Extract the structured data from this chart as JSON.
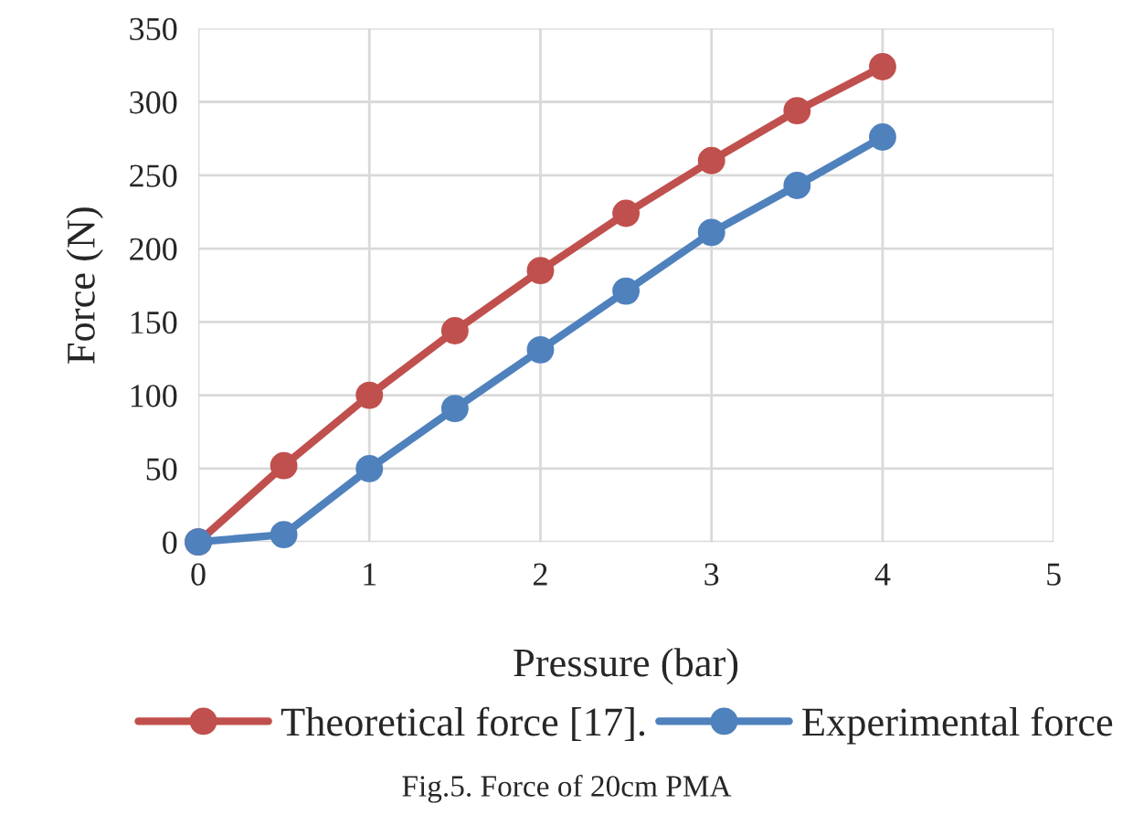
{
  "chart_data": {
    "type": "line",
    "xlabel": "Pressure (bar)",
    "ylabel": "Force (N)",
    "x": [
      0,
      0.5,
      1,
      1.5,
      2,
      2.5,
      3,
      3.5,
      4
    ],
    "series": [
      {
        "name": "Theoretical force [17].",
        "color": "#c0504d",
        "values": [
          0,
          52,
          100,
          144,
          185,
          224,
          260,
          294,
          324
        ]
      },
      {
        "name": "Experimental force",
        "color": "#4f81bd",
        "values": [
          0,
          5,
          50,
          91,
          131,
          171,
          211,
          243,
          276
        ]
      }
    ],
    "xlim": [
      0,
      5
    ],
    "xticks": [
      0,
      1,
      2,
      3,
      4,
      5
    ],
    "ylim": [
      0,
      350
    ],
    "yticks": [
      0,
      50,
      100,
      150,
      200,
      250,
      300,
      350
    ],
    "grid": true,
    "legend": "bottom",
    "marker": "circle",
    "line_style": "solid",
    "annotations": [
      "Fig.5. Force of 20cm PMA"
    ]
  }
}
